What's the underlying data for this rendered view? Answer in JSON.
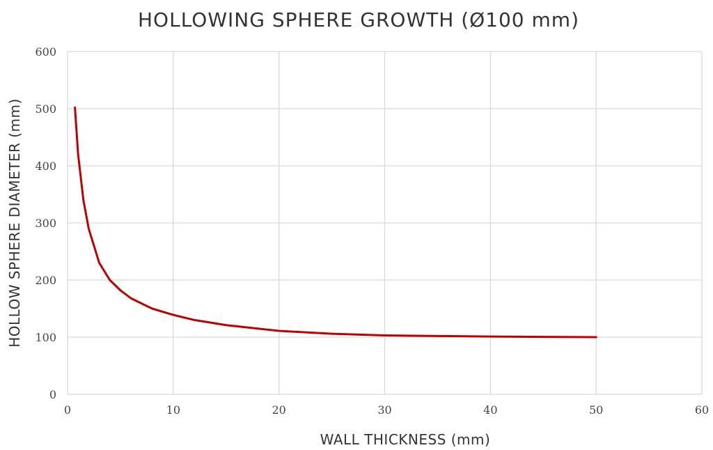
{
  "chart_data": {
    "type": "line",
    "title": "HOLLOWING SPHERE GROWTH (Ø100 mm)",
    "x_label": "WALL THICKNESS (mm)",
    "y_label": "HOLLOW SPHERE DIAMETER (mm)",
    "x": [
      0.7,
      1,
      1.5,
      2,
      3,
      4,
      5,
      6,
      8,
      10,
      12,
      15,
      20,
      25,
      30,
      35,
      40,
      45,
      50
    ],
    "series": [
      {
        "name": "Hollow sphere diameter",
        "color": "#c00000",
        "values": [
          502,
          420,
          340,
          290,
          230,
          200,
          182,
          168,
          150,
          139,
          130,
          121,
          111,
          106,
          103,
          102,
          101,
          100.5,
          100
        ]
      }
    ],
    "xlim": [
      0,
      60
    ],
    "xticks": [
      0,
      10,
      20,
      30,
      40,
      50,
      60
    ],
    "ylim": [
      0,
      600
    ],
    "yticks": [
      0,
      100,
      200,
      300,
      400,
      500,
      600
    ],
    "grid": true
  }
}
